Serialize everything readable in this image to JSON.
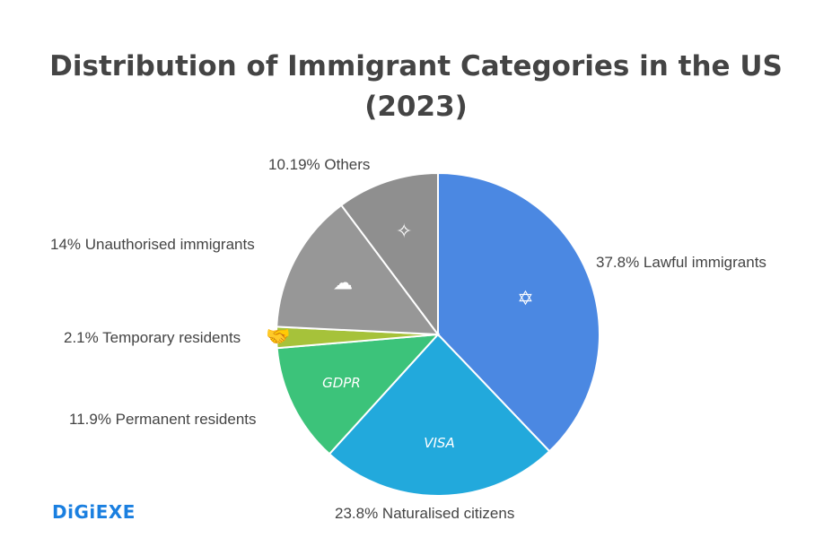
{
  "chart_data": {
    "type": "pie",
    "title": "Distribution of Immigrant Categories in the US",
    "subtitle": "(2023)",
    "slices": [
      {
        "name": "Lawful immigrants",
        "value": 37.8,
        "label": "37.8% Lawful immigrants",
        "color": "#4b88e2",
        "icon": "star-badge-icon"
      },
      {
        "name": "Naturalised citizens",
        "value": 23.8,
        "label": "23.8% Naturalised citizens",
        "color": "#22a9dc",
        "icon": "visa-icon",
        "icon_text": "VISA"
      },
      {
        "name": "Permanent residents",
        "value": 11.9,
        "label": "11.9% Permanent residents",
        "color": "#3cc37a",
        "icon": "gdpr-icon",
        "icon_text": "GDPR"
      },
      {
        "name": "Temporary residents",
        "value": 2.1,
        "label": "2.1% Temporary residents",
        "color": "#a6c23a",
        "icon": "handshake-icon"
      },
      {
        "name": "Unauthorised immigrants",
        "value": 14,
        "label": "14% Unauthorised immigrants",
        "color": "#979797",
        "icon": "cloud-arrows-icon"
      },
      {
        "name": "Others",
        "value": 10.19,
        "label": "10.19% Others",
        "color": "#8f8f8f",
        "icon": "compass-icon"
      }
    ]
  },
  "branding": {
    "logo": "DiGiEXE"
  }
}
